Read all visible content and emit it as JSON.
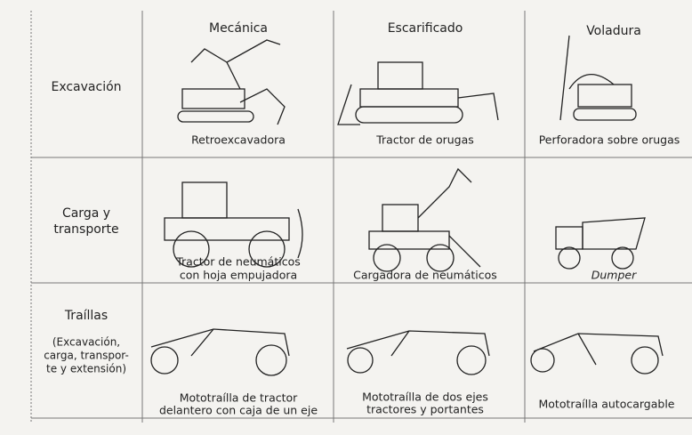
{
  "table": {
    "columns": [
      "Mecánica",
      "Escarificado",
      "Voladura"
    ],
    "rows": [
      {
        "label": [
          "Excavación"
        ],
        "cells": [
          {
            "caption": [
              "Retroexcavadora"
            ]
          },
          {
            "caption": [
              "Tractor de orugas"
            ]
          },
          {
            "caption": [
              "Perforadora sobre orugas"
            ]
          }
        ]
      },
      {
        "label": [
          "Carga y",
          "transporte"
        ],
        "cells": [
          {
            "caption": [
              "Tractor de neumáticos",
              "con hoja empujadora"
            ]
          },
          {
            "caption": [
              "Cargadora de neumáticos"
            ]
          },
          {
            "caption": [
              "Dumper"
            ]
          }
        ]
      },
      {
        "label": [
          "Traíllas"
        ],
        "note": [
          "(Excavación,",
          "carga, transpor-",
          "te y extensión)"
        ],
        "cells": [
          {
            "caption": [
              "Mototraílla de tractor",
              "delantero con caja de un eje"
            ]
          },
          {
            "caption": [
              "Mototraílla de dos ejes",
              "tractores y portantes"
            ]
          },
          {
            "caption": [
              "Mototraílla autocargable"
            ]
          }
        ]
      }
    ]
  }
}
